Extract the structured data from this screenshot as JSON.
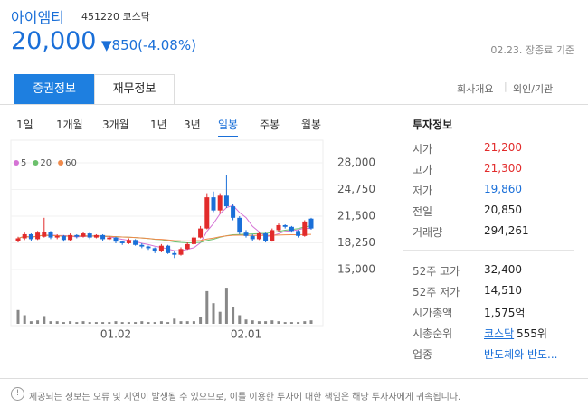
{
  "header": {
    "name": "아이엠티",
    "code": "451220 코스닥",
    "price": "20,000",
    "change": "▼850(-4.08%)",
    "as_of": "02.23. 장종료 기준"
  },
  "tabs": {
    "items": [
      "증권정보",
      "재무정보"
    ],
    "links": [
      "회사개요",
      "외인/기관"
    ]
  },
  "periods": [
    "1일",
    "1개월",
    "3개월",
    "1년",
    "3년",
    "일봉",
    "주봉",
    "월봉"
  ],
  "selected_period": 5,
  "chart": {
    "type": "candlestick",
    "ylim": [
      15000,
      28000
    ],
    "yticks": [
      {
        "value": 28000,
        "label": "28,000"
      },
      {
        "value": 24750,
        "label": "24,750"
      },
      {
        "value": 21500,
        "label": "21,500"
      },
      {
        "value": 18250,
        "label": "18,250"
      },
      {
        "value": 15000,
        "label": "15,000"
      }
    ],
    "up_color": "#e22b2b",
    "down_color": "#1a6fd8",
    "ma": [
      {
        "name": "5",
        "color": "#d573d5"
      },
      {
        "name": "20",
        "color": "#6cc06c"
      },
      {
        "name": "60",
        "color": "#f08a4b"
      }
    ],
    "dates": [
      null,
      null,
      null,
      null,
      null,
      null,
      null,
      null,
      null,
      null,
      null,
      null,
      null,
      null,
      null,
      "01.02",
      null,
      null,
      null,
      null,
      null,
      null,
      null,
      null,
      null,
      null,
      null,
      null,
      null,
      null,
      null,
      null,
      null,
      null,
      null,
      "02.01",
      null,
      null,
      null,
      null,
      null,
      null,
      null,
      null,
      null,
      null
    ],
    "candles": [
      [
        18500,
        19000,
        18300,
        18800
      ],
      [
        18800,
        19500,
        18600,
        19300
      ],
      [
        19300,
        19400,
        18500,
        18700
      ],
      [
        18700,
        19700,
        18600,
        19500
      ],
      [
        19000,
        21300,
        18900,
        19600
      ],
      [
        19600,
        19700,
        18700,
        18900
      ],
      [
        18900,
        19300,
        18700,
        19100
      ],
      [
        19100,
        19200,
        18400,
        18600
      ],
      [
        18600,
        19400,
        18500,
        19200
      ],
      [
        19200,
        19300,
        18800,
        19000
      ],
      [
        19000,
        19600,
        18900,
        19400
      ],
      [
        19400,
        19500,
        18700,
        18900
      ],
      [
        18900,
        19300,
        18800,
        19200
      ],
      [
        19200,
        19300,
        18500,
        18700
      ],
      [
        18700,
        19100,
        18600,
        18900
      ],
      [
        18900,
        19000,
        18200,
        18400
      ],
      [
        18400,
        18500,
        18000,
        18200
      ],
      [
        18200,
        18800,
        18100,
        18600
      ],
      [
        18600,
        18700,
        17900,
        18000
      ],
      [
        18000,
        18200,
        17600,
        17800
      ],
      [
        17800,
        17900,
        17400,
        17600
      ],
      [
        17600,
        17700,
        17000,
        17200
      ],
      [
        17200,
        18100,
        17100,
        17900
      ],
      [
        17900,
        18000,
        16900,
        17000
      ],
      [
        17000,
        17200,
        16400,
        16800
      ],
      [
        16800,
        17700,
        16700,
        17500
      ],
      [
        17500,
        18300,
        17400,
        18100
      ],
      [
        18100,
        19100,
        18000,
        18900
      ],
      [
        18900,
        20300,
        18800,
        20000
      ],
      [
        20000,
        24300,
        19900,
        23800
      ],
      [
        23800,
        24500,
        22000,
        22200
      ],
      [
        22200,
        24300,
        21800,
        24000
      ],
      [
        24000,
        26500,
        22500,
        22700
      ],
      [
        22700,
        23000,
        21000,
        21300
      ],
      [
        21300,
        21500,
        19300,
        19500
      ],
      [
        19500,
        19800,
        18900,
        19100
      ],
      [
        19100,
        19300,
        18500,
        18700
      ],
      [
        18700,
        19600,
        18600,
        19400
      ],
      [
        19400,
        19500,
        18300,
        18500
      ],
      [
        18500,
        20000,
        18400,
        19800
      ],
      [
        19800,
        20600,
        19600,
        20400
      ],
      [
        20400,
        20500,
        20000,
        20200
      ],
      [
        20200,
        20300,
        19500,
        19700
      ],
      [
        19700,
        19800,
        18900,
        19100
      ],
      [
        19100,
        21000,
        19000,
        20850
      ],
      [
        21200,
        21300,
        19860,
        20000
      ]
    ],
    "volume_lim": [
      0,
      40
    ],
    "volume": [
      16,
      10,
      3,
      4,
      9,
      3,
      3,
      2,
      3,
      2,
      3,
      2,
      2,
      2,
      2,
      3,
      2,
      2,
      2,
      3,
      2,
      2,
      3,
      2,
      6,
      3,
      3,
      3,
      8,
      38,
      24,
      14,
      42,
      20,
      10,
      5,
      4,
      3,
      3,
      4,
      3,
      2,
      2,
      2,
      3,
      4
    ]
  },
  "info": {
    "title": "투자정보",
    "rows": [
      {
        "label": "시가",
        "value": "21,200",
        "color": "#e22b2b"
      },
      {
        "label": "고가",
        "value": "21,300",
        "color": "#e22b2b"
      },
      {
        "label": "저가",
        "value": "19,860",
        "color": "#1a6fd8"
      },
      {
        "label": "전일",
        "value": "20,850",
        "color": "#222"
      },
      {
        "label": "거래량",
        "value": "294,261",
        "color": "#222"
      }
    ],
    "rows2": [
      {
        "label": "52주 고가",
        "value": "32,400"
      },
      {
        "label": "52주 저가",
        "value": "14,510"
      },
      {
        "label": "시가총액",
        "value": "1,575억"
      },
      {
        "label": "시총순위",
        "link": "코스닥",
        "value": "555위"
      },
      {
        "label": "업종",
        "link": "반도체와 반도..."
      }
    ]
  },
  "footer": "제공되는 정보는 오류 및 지연이 발생될 수 있으므로, 이를 이용한 투자에 대한 책임은 해당 투자자에게 귀속됩니다."
}
